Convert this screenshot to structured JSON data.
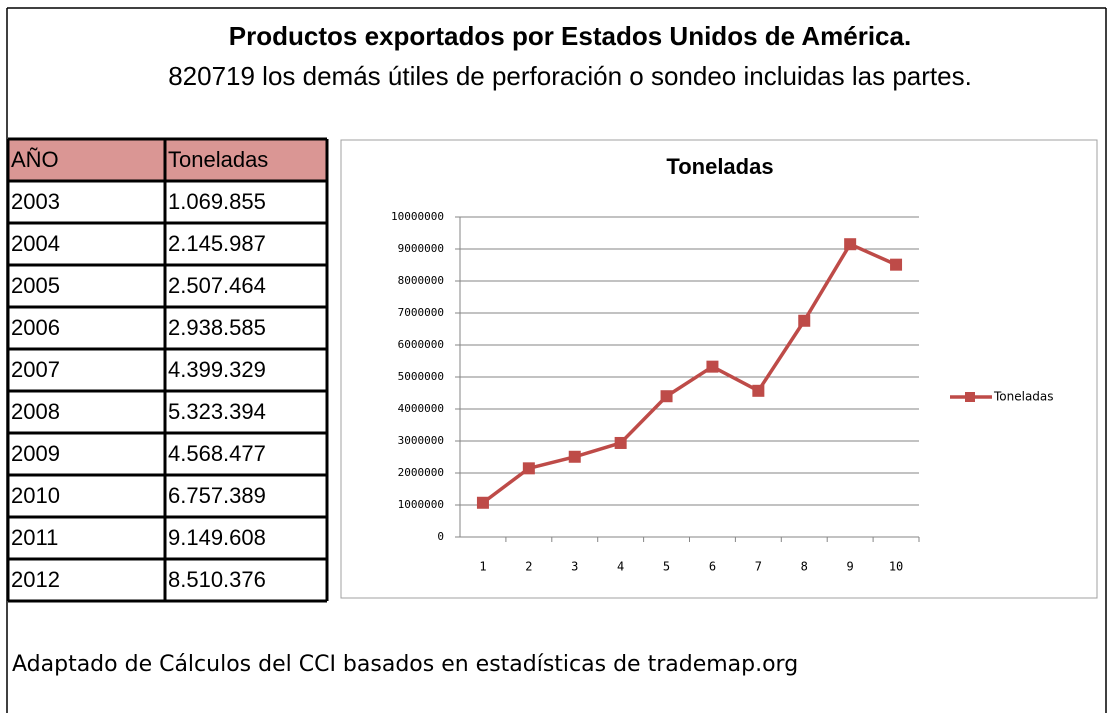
{
  "header": {
    "title": "Productos exportados por Estados Unidos de América.",
    "subtitle": "820719 los demás útiles de perforación o sondeo incluidas las partes."
  },
  "table": {
    "header": [
      "AÑO",
      "Toneladas"
    ],
    "rows": [
      [
        "2003",
        "1.069.855"
      ],
      [
        "2004",
        "2.145.987"
      ],
      [
        "2005",
        "2.507.464"
      ],
      [
        "2006",
        "2.938.585"
      ],
      [
        "2007",
        "4.399.329"
      ],
      [
        "2008",
        "5.323.394"
      ],
      [
        "2009",
        "4.568.477"
      ],
      [
        "2010",
        "6.757.389"
      ],
      [
        "2011",
        "9.149.608"
      ],
      [
        "2012",
        "8.510.376"
      ]
    ]
  },
  "chart_data": {
    "type": "line",
    "title": "Toneladas",
    "categories": [
      1,
      2,
      3,
      4,
      5,
      6,
      7,
      8,
      9,
      10
    ],
    "series": [
      {
        "name": "Toneladas",
        "color": "#be4b48",
        "values": [
          1069855,
          2145987,
          2507464,
          2938585,
          4399329,
          5323394,
          4568477,
          6757389,
          9149608,
          8510376
        ]
      }
    ],
    "ylim": [
      0,
      10000000
    ],
    "yticks": [
      0,
      1000000,
      2000000,
      3000000,
      4000000,
      5000000,
      6000000,
      7000000,
      8000000,
      9000000,
      10000000
    ],
    "grid": true,
    "legend": "right"
  },
  "footer": "Adaptado de Cálculos del CCI basados en estadísticas de trademap.org"
}
